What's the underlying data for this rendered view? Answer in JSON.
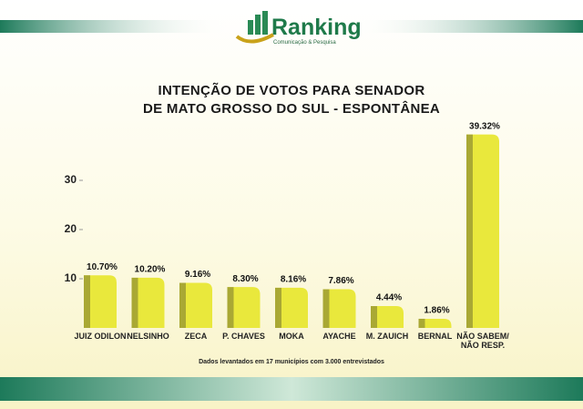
{
  "logo": {
    "name": "Ranking",
    "tagline": "Comunicação & Pesquisa"
  },
  "chart_data": {
    "type": "bar",
    "title": "INTENÇÃO DE VOTOS PARA SENADOR\nDE MATO GROSSO DO SUL - ESPONTÂNEA",
    "categories": [
      "JUIZ ODILON",
      "NELSINHO",
      "ZECA",
      "P. CHAVES",
      "MOKA",
      "AYACHE",
      "M. ZAUICH",
      "BERNAL",
      "NÃO SABEM/\nNÃO RESP."
    ],
    "values": [
      10.7,
      10.2,
      9.16,
      8.3,
      8.16,
      7.86,
      4.44,
      1.86,
      39.32
    ],
    "value_labels": [
      "10.70%",
      "10.20%",
      "9.16%",
      "8.30%",
      "8.16%",
      "7.86%",
      "4.44%",
      "1.86%",
      "39.32%"
    ],
    "color": "#e9e83c",
    "ylim": [
      0,
      40
    ],
    "yticks": [
      10,
      20,
      30
    ],
    "note": "Dados levantados em 17 municípios com 3.000 entrevistados"
  }
}
